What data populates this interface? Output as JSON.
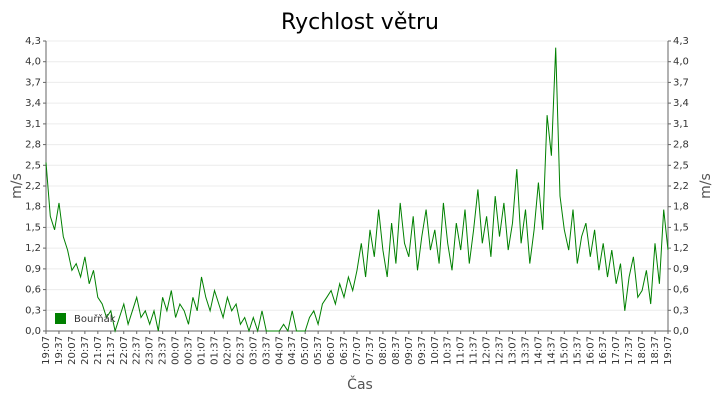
{
  "chart_data": {
    "type": "line",
    "title": "Rychlost větru",
    "x_label": "Čas",
    "y_label": "m/s",
    "y2_label": "m/s",
    "categories": [
      "19:07",
      null,
      null,
      "19:37",
      null,
      null,
      "20:07",
      null,
      null,
      "20:37",
      null,
      null,
      "21:07",
      null,
      null,
      "21:37",
      null,
      null,
      "22:07",
      null,
      null,
      "22:37",
      null,
      null,
      "23:07",
      null,
      null,
      "23:37",
      null,
      null,
      "00:07",
      null,
      null,
      "00:37",
      null,
      null,
      "01:07",
      null,
      null,
      "01:37",
      null,
      null,
      "02:07",
      null,
      null,
      "02:37",
      null,
      null,
      "03:07",
      null,
      null,
      "03:37",
      null,
      null,
      "04:07",
      null,
      null,
      "04:37",
      null,
      null,
      "05:07",
      null,
      null,
      "05:37",
      null,
      null,
      "06:07",
      null,
      null,
      "06:37",
      null,
      null,
      "07:07",
      null,
      null,
      "07:37",
      null,
      null,
      "08:07",
      null,
      null,
      "08:37",
      null,
      null,
      "09:07",
      null,
      null,
      "09:37",
      null,
      null,
      "10:07",
      null,
      null,
      "10:37",
      null,
      null,
      "11:07",
      null,
      null,
      "11:37",
      null,
      null,
      "12:07",
      null,
      null,
      "12:37",
      null,
      null,
      "13:07",
      null,
      null,
      "13:37",
      null,
      null,
      "14:07",
      null,
      null,
      "14:37",
      null,
      null,
      "15:07",
      null,
      null,
      "15:37",
      null,
      null,
      "16:07",
      null,
      null,
      "16:37",
      null,
      null,
      "17:07",
      null,
      null,
      "17:37",
      null,
      null,
      "18:07",
      null,
      null,
      "18:37",
      null,
      null,
      "19:07"
    ],
    "series": [
      {
        "name": "Bouřňák",
        "color": "#008000",
        "values": [
          2.5,
          1.7,
          1.5,
          1.9,
          1.4,
          1.2,
          0.9,
          1.0,
          0.8,
          1.1,
          0.7,
          0.9,
          0.5,
          0.4,
          0.2,
          0.3,
          0.0,
          0.2,
          0.4,
          0.1,
          0.3,
          0.5,
          0.2,
          0.3,
          0.1,
          0.3,
          0.0,
          0.5,
          0.3,
          0.6,
          0.2,
          0.4,
          0.3,
          0.1,
          0.5,
          0.3,
          0.8,
          0.5,
          0.3,
          0.6,
          0.4,
          0.2,
          0.5,
          0.3,
          0.4,
          0.1,
          0.2,
          0.0,
          0.2,
          0.0,
          0.3,
          0.0,
          0.0,
          0.0,
          0.0,
          0.1,
          0.0,
          0.3,
          0.0,
          0.0,
          0.0,
          0.2,
          0.3,
          0.1,
          0.4,
          0.5,
          0.6,
          0.4,
          0.7,
          0.5,
          0.8,
          0.6,
          0.9,
          1.3,
          0.8,
          1.5,
          1.1,
          1.8,
          1.2,
          0.8,
          1.6,
          1.0,
          1.9,
          1.3,
          1.1,
          1.7,
          0.9,
          1.4,
          1.8,
          1.2,
          1.5,
          1.0,
          1.9,
          1.3,
          0.9,
          1.6,
          1.2,
          1.8,
          1.0,
          1.5,
          2.1,
          1.3,
          1.7,
          1.1,
          2.0,
          1.4,
          1.9,
          1.2,
          1.6,
          2.4,
          1.3,
          1.8,
          1.0,
          1.5,
          2.2,
          1.5,
          3.2,
          2.6,
          4.2,
          2.0,
          1.5,
          1.2,
          1.8,
          1.0,
          1.4,
          1.6,
          1.1,
          1.5,
          0.9,
          1.3,
          0.8,
          1.2,
          0.7,
          1.0,
          0.3,
          0.8,
          1.1,
          0.5,
          0.6,
          0.9,
          0.4,
          1.3,
          0.7,
          1.8,
          1.2
        ]
      }
    ],
    "ylim": [
      0,
      4.3
    ],
    "yticks": [
      {
        "value": 0,
        "label": "0,0"
      },
      {
        "value": 0.307,
        "label": "0,3"
      },
      {
        "value": 0.614,
        "label": "0,6"
      },
      {
        "value": 0.921,
        "label": "0,9"
      },
      {
        "value": 1.229,
        "label": "1,2"
      },
      {
        "value": 1.536,
        "label": "1,5"
      },
      {
        "value": 1.843,
        "label": "1,8"
      },
      {
        "value": 2.15,
        "label": "2,2"
      },
      {
        "value": 2.457,
        "label": "2,5"
      },
      {
        "value": 2.764,
        "label": "2,8"
      },
      {
        "value": 3.071,
        "label": "3,1"
      },
      {
        "value": 3.379,
        "label": "3,4"
      },
      {
        "value": 3.686,
        "label": "3,7"
      },
      {
        "value": 3.993,
        "label": "4,0"
      },
      {
        "value": 4.3,
        "label": "4,3"
      }
    ],
    "grid": true,
    "legend": "bottom-left"
  }
}
